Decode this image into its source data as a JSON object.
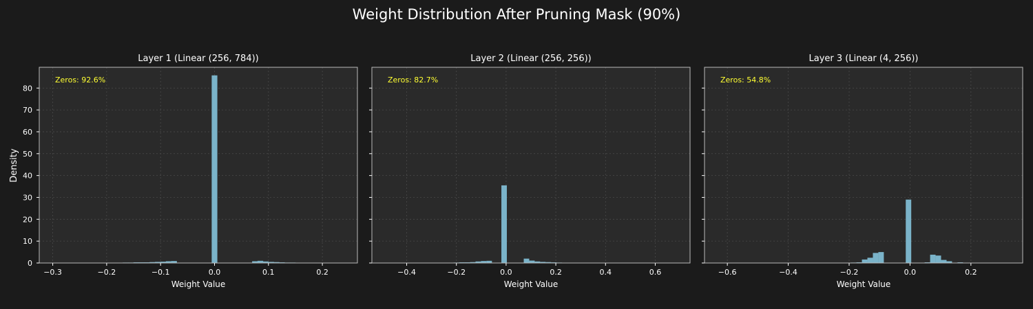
{
  "figure": {
    "title": "Weight Distribution After Pruning Mask (90%)",
    "ylabel": "Density"
  },
  "colors": {
    "background": "#1b1b1b",
    "axes_bg": "#2a2a2a",
    "bar": "#7ab3c9",
    "text": "#ffffff",
    "annotation": "#ffff33",
    "grid": "#4a4a4a",
    "spine": "#bbbbbb"
  },
  "chart_data": [
    {
      "type": "bar",
      "title": "Layer 1 (Linear (256, 784))",
      "xlabel": "Weight Value",
      "ylabel": "Density",
      "annotation": "Zeros: 92.6%",
      "xlim": [
        -0.325,
        0.265
      ],
      "ylim": [
        0,
        89.5
      ],
      "xticks": [
        -0.3,
        -0.2,
        -0.1,
        0.0,
        0.1,
        0.2
      ],
      "xtick_labels": [
        "−0.3",
        "−0.2",
        "−0.1",
        "0.0",
        "0.1",
        "0.2"
      ],
      "yticks": [
        0,
        10,
        20,
        30,
        40,
        50,
        60,
        70,
        80
      ],
      "ytick_labels": [
        "0",
        "10",
        "20",
        "30",
        "40",
        "50",
        "60",
        "70",
        "80"
      ],
      "grid": true,
      "bin_width": 0.0105,
      "bins": [
        {
          "x": -0.165,
          "y": 0.2
        },
        {
          "x": -0.155,
          "y": 0.2
        },
        {
          "x": -0.145,
          "y": 0.3
        },
        {
          "x": -0.135,
          "y": 0.3
        },
        {
          "x": -0.125,
          "y": 0.3
        },
        {
          "x": -0.115,
          "y": 0.4
        },
        {
          "x": -0.105,
          "y": 0.5
        },
        {
          "x": -0.095,
          "y": 0.6
        },
        {
          "x": -0.085,
          "y": 0.8
        },
        {
          "x": -0.075,
          "y": 0.9
        },
        {
          "x": 0.0,
          "y": 85.8
        },
        {
          "x": 0.075,
          "y": 0.8
        },
        {
          "x": 0.085,
          "y": 1.0
        },
        {
          "x": 0.095,
          "y": 0.7
        },
        {
          "x": 0.105,
          "y": 0.5
        },
        {
          "x": 0.115,
          "y": 0.4
        },
        {
          "x": 0.125,
          "y": 0.3
        },
        {
          "x": 0.135,
          "y": 0.2
        },
        {
          "x": 0.145,
          "y": 0.2
        }
      ]
    },
    {
      "type": "bar",
      "title": "Layer 2 (Linear (256, 256))",
      "xlabel": "Weight Value",
      "annotation": "Zeros: 82.7%",
      "xlim": [
        -0.54,
        0.74
      ],
      "ylim": [
        0,
        89.5
      ],
      "xticks": [
        -0.4,
        -0.2,
        0.0,
        0.2,
        0.4,
        0.6
      ],
      "xtick_labels": [
        "−0.4",
        "−0.2",
        "0.0",
        "0.2",
        "0.4",
        "0.6"
      ],
      "yticks": [
        0,
        10,
        20,
        30,
        40,
        50,
        60,
        70,
        80
      ],
      "grid": true,
      "bin_width": 0.022,
      "bins": [
        {
          "x": -0.2,
          "y": 0.2
        },
        {
          "x": -0.178,
          "y": 0.3
        },
        {
          "x": -0.156,
          "y": 0.3
        },
        {
          "x": -0.134,
          "y": 0.4
        },
        {
          "x": -0.112,
          "y": 0.7
        },
        {
          "x": -0.09,
          "y": 0.9
        },
        {
          "x": -0.068,
          "y": 1.0
        },
        {
          "x": -0.008,
          "y": 35.5
        },
        {
          "x": 0.082,
          "y": 2.0
        },
        {
          "x": 0.104,
          "y": 1.1
        },
        {
          "x": 0.126,
          "y": 0.7
        },
        {
          "x": 0.148,
          "y": 0.5
        },
        {
          "x": 0.17,
          "y": 0.4
        },
        {
          "x": 0.192,
          "y": 0.3
        },
        {
          "x": 0.214,
          "y": 0.2
        },
        {
          "x": 0.236,
          "y": 0.1
        }
      ]
    },
    {
      "type": "bar",
      "title": "Layer 3 (Linear (4, 256))",
      "xlabel": "Weight Value",
      "annotation": "Zeros: 54.8%",
      "xlim": [
        -0.675,
        0.37
      ],
      "ylim": [
        0,
        89.5
      ],
      "xticks": [
        -0.6,
        -0.4,
        -0.2,
        0.0,
        0.2
      ],
      "xtick_labels": [
        "−0.6",
        "−0.4",
        "−0.2",
        "0.0",
        "0.2"
      ],
      "yticks": [
        0,
        10,
        20,
        30,
        40,
        50,
        60,
        70,
        80
      ],
      "grid": true,
      "bin_width": 0.018,
      "bins": [
        {
          "x": -0.185,
          "y": 0.2
        },
        {
          "x": -0.167,
          "y": 0.3
        },
        {
          "x": -0.149,
          "y": 1.6
        },
        {
          "x": -0.131,
          "y": 2.4
        },
        {
          "x": -0.113,
          "y": 4.6
        },
        {
          "x": -0.095,
          "y": 5.0
        },
        {
          "x": -0.005,
          "y": 29.0
        },
        {
          "x": 0.057,
          "y": 0.3
        },
        {
          "x": 0.075,
          "y": 3.8
        },
        {
          "x": 0.093,
          "y": 3.4
        },
        {
          "x": 0.111,
          "y": 1.4
        },
        {
          "x": 0.129,
          "y": 0.8
        },
        {
          "x": 0.165,
          "y": 0.3
        }
      ]
    }
  ]
}
